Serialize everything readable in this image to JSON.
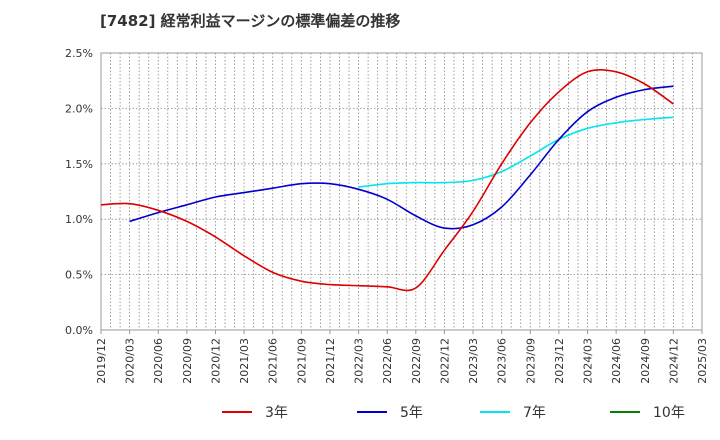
{
  "chart_data": {
    "type": "line",
    "title": "[7482]  経常利益マージンの標準偏差の推移",
    "xlabel": "",
    "ylabel": "",
    "ylim": [
      0,
      2.5
    ],
    "y_ticks": [
      0,
      0.5,
      1.0,
      1.5,
      2.0,
      2.5
    ],
    "y_tick_labels": [
      "0.0%",
      "0.5%",
      "1.0%",
      "1.5%",
      "2.0%",
      "2.5%"
    ],
    "x_tick_labels": [
      "2019/12",
      "2020/03",
      "2020/06",
      "2020/09",
      "2020/12",
      "2021/03",
      "2021/06",
      "2021/09",
      "2021/12",
      "2022/03",
      "2022/06",
      "2022/09",
      "2022/12",
      "2023/03",
      "2023/06",
      "2023/09",
      "2023/12",
      "2024/03",
      "2024/06",
      "2024/09",
      "2024/12",
      "2025/03"
    ],
    "grid": true,
    "legend_position": "bottom",
    "series": [
      {
        "name": "3年",
        "color": "#dd0000",
        "x": [
          "2019/12",
          "2020/03",
          "2020/06",
          "2020/09",
          "2020/12",
          "2021/03",
          "2021/06",
          "2021/09",
          "2021/12",
          "2022/03",
          "2022/06",
          "2022/09",
          "2022/12",
          "2023/03",
          "2023/06",
          "2023/09",
          "2023/12",
          "2024/03",
          "2024/06",
          "2024/09",
          "2024/12"
        ],
        "values": [
          1.13,
          1.14,
          1.08,
          0.98,
          0.84,
          0.67,
          0.52,
          0.44,
          0.41,
          0.4,
          0.39,
          0.38,
          0.72,
          1.07,
          1.5,
          1.87,
          2.15,
          2.33,
          2.33,
          2.22,
          2.04
        ]
      },
      {
        "name": "5年",
        "color": "#0000cc",
        "x": [
          "2020/03",
          "2020/06",
          "2020/09",
          "2020/12",
          "2021/03",
          "2021/06",
          "2021/09",
          "2021/12",
          "2022/03",
          "2022/06",
          "2022/09",
          "2022/12",
          "2023/03",
          "2023/06",
          "2023/09",
          "2023/12",
          "2024/03",
          "2024/06",
          "2024/09",
          "2024/12"
        ],
        "values": [
          0.98,
          1.06,
          1.13,
          1.2,
          1.24,
          1.28,
          1.32,
          1.32,
          1.27,
          1.18,
          1.03,
          0.92,
          0.95,
          1.11,
          1.4,
          1.72,
          1.97,
          2.1,
          2.17,
          2.2
        ]
      },
      {
        "name": "7年",
        "color": "#00e5ee",
        "x": [
          "2022/03",
          "2022/06",
          "2022/09",
          "2022/12",
          "2023/03",
          "2023/06",
          "2023/09",
          "2023/12",
          "2024/03",
          "2024/06",
          "2024/09",
          "2024/12"
        ],
        "values": [
          1.29,
          1.32,
          1.33,
          1.33,
          1.35,
          1.43,
          1.57,
          1.72,
          1.82,
          1.87,
          1.9,
          1.92
        ]
      },
      {
        "name": "10年",
        "color": "#008000",
        "x": [],
        "values": []
      }
    ]
  }
}
